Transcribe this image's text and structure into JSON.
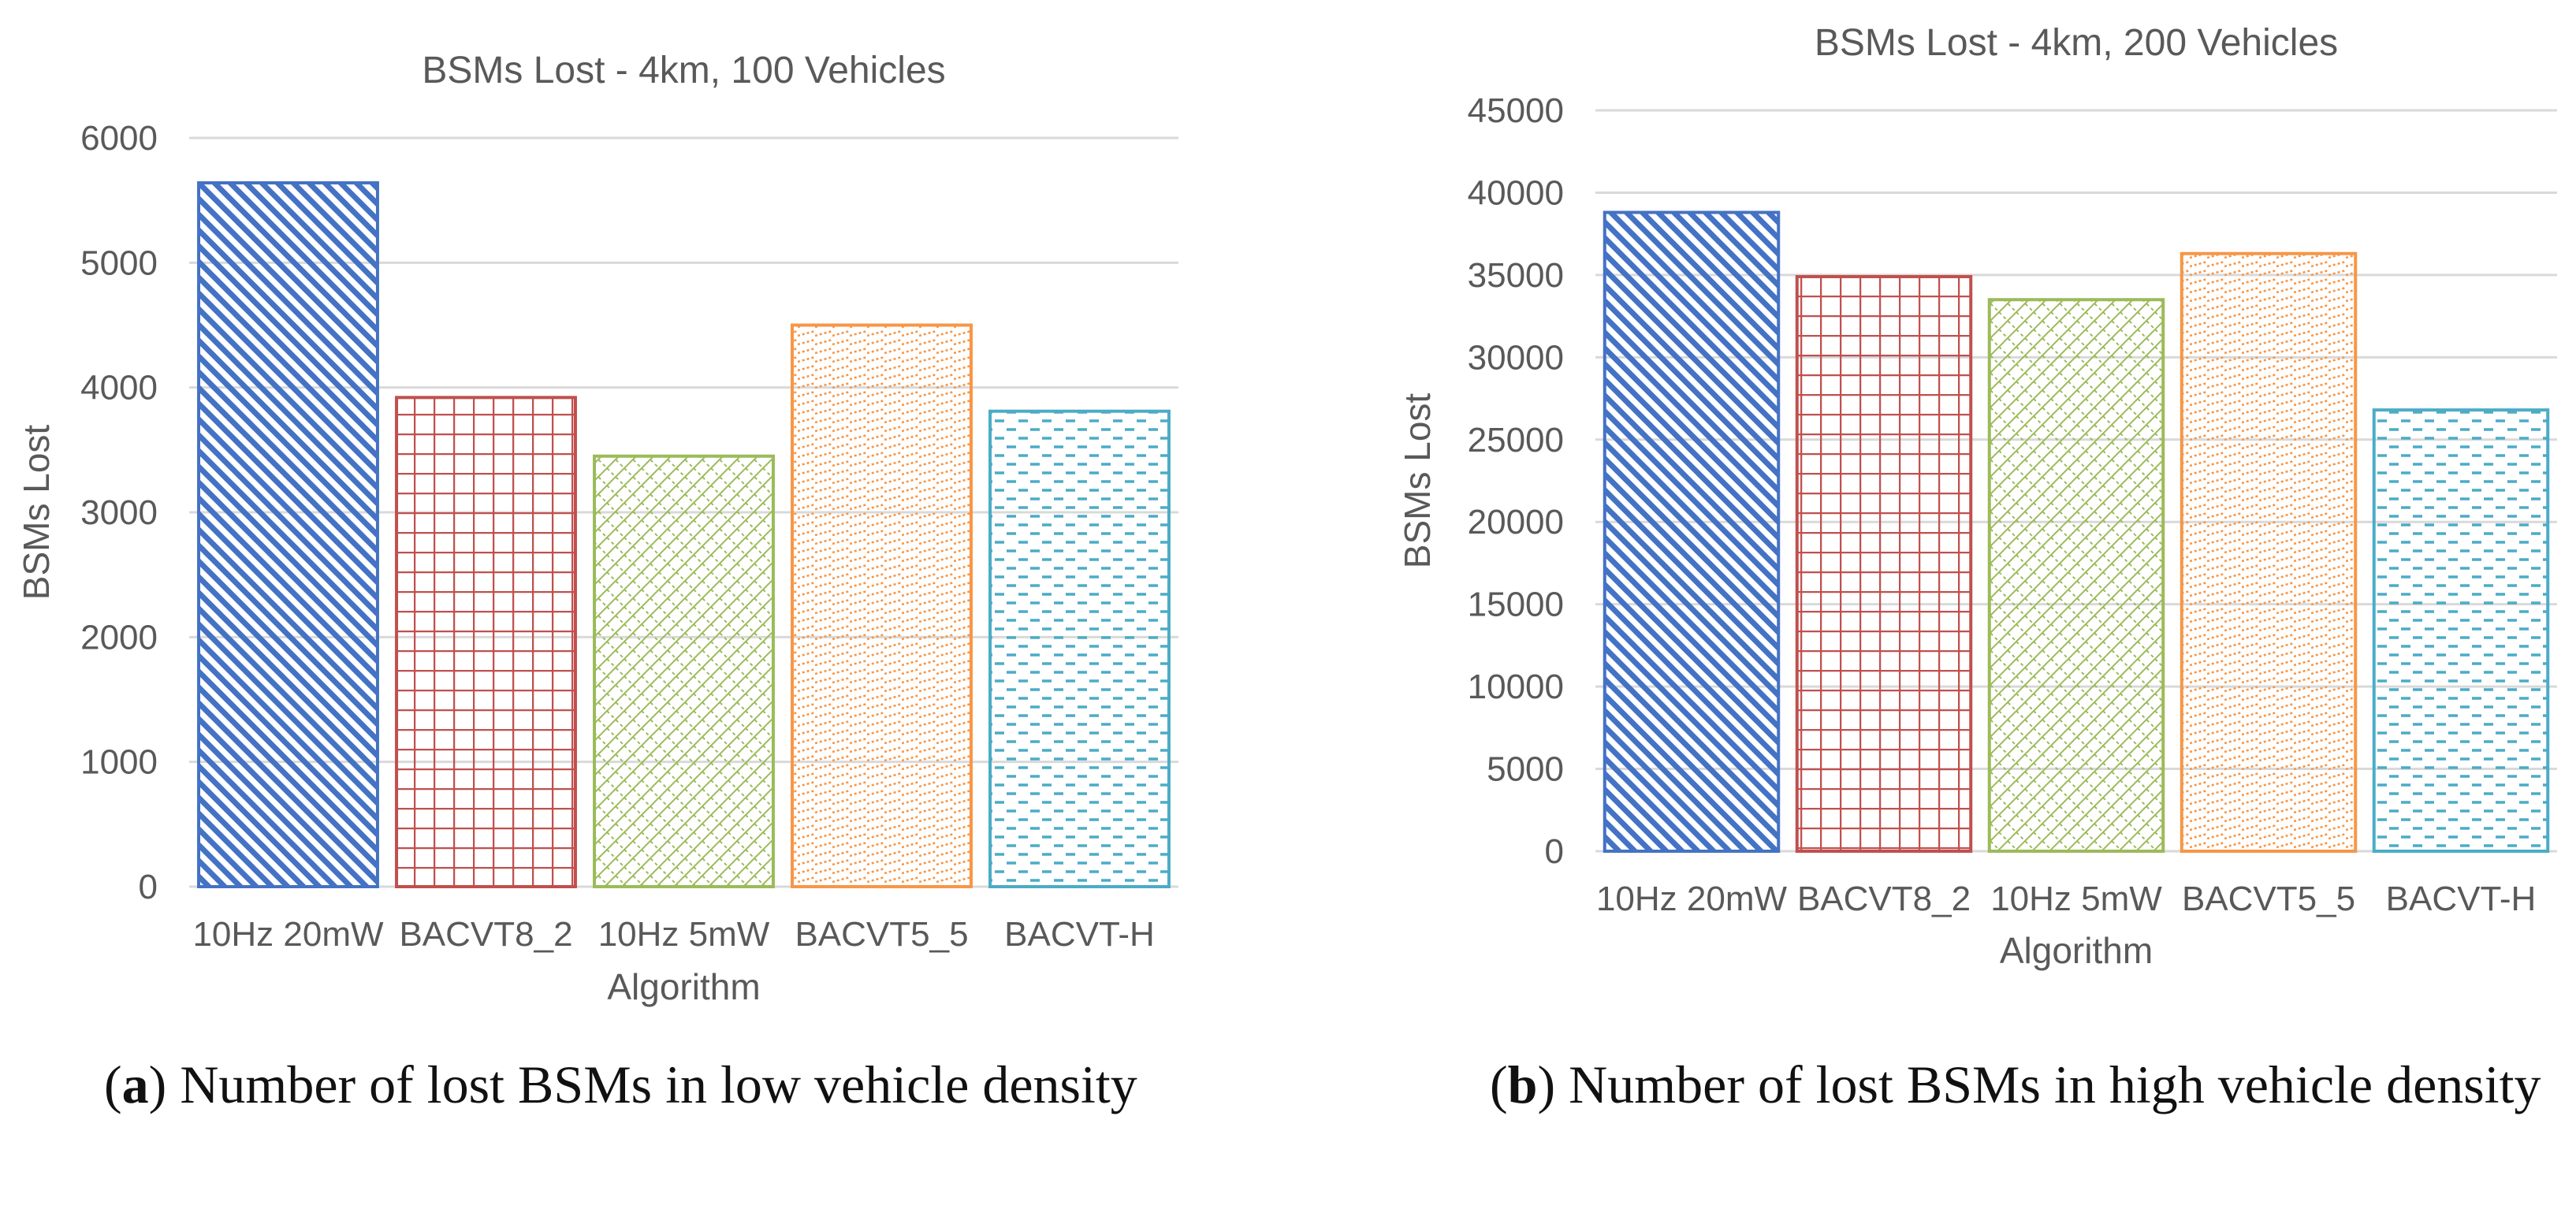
{
  "chart_data": [
    {
      "type": "bar",
      "title": "BSMs Lost - 4km, 100 Vehicles",
      "xlabel": "Algorithm",
      "ylabel": "BSMs Lost",
      "ylim": [
        0,
        6000
      ],
      "yticks": [
        0,
        1000,
        2000,
        3000,
        4000,
        5000,
        6000
      ],
      "categories": [
        "10Hz 20mW",
        "BACVT8_2",
        "10Hz 5mW",
        "BACVT5_5",
        "BACVT-H"
      ],
      "values": [
        5640,
        3920,
        3450,
        4500,
        3810
      ],
      "colors": [
        "#4472c4",
        "#c0504d",
        "#9bbb59",
        "#f79646",
        "#4bacc6"
      ],
      "patterns": [
        "diagonal",
        "grid",
        "diamond",
        "dotted-diagonal",
        "dashed"
      ],
      "grid": true,
      "legend": "none"
    },
    {
      "type": "bar",
      "title": "BSMs Lost - 4km, 200 Vehicles",
      "xlabel": "Algorithm",
      "ylabel": "BSMs Lost",
      "ylim": [
        0,
        45000
      ],
      "yticks": [
        0,
        5000,
        10000,
        15000,
        20000,
        25000,
        30000,
        35000,
        40000,
        45000
      ],
      "categories": [
        "10Hz 20mW",
        "BACVT8_2",
        "10Hz 5mW",
        "BACVT5_5",
        "BACVT-H"
      ],
      "values": [
        38800,
        34900,
        33500,
        36300,
        26800
      ],
      "colors": [
        "#4472c4",
        "#c0504d",
        "#9bbb59",
        "#f79646",
        "#4bacc6"
      ],
      "patterns": [
        "diagonal",
        "grid",
        "diamond",
        "dotted-diagonal",
        "dashed"
      ],
      "grid": true,
      "legend": "none"
    }
  ],
  "captions": [
    {
      "label": "a",
      "text": "Number of lost BSMs in low vehicle density"
    },
    {
      "label": "b",
      "text": "Number of lost BSMs in high vehicle density"
    }
  ]
}
